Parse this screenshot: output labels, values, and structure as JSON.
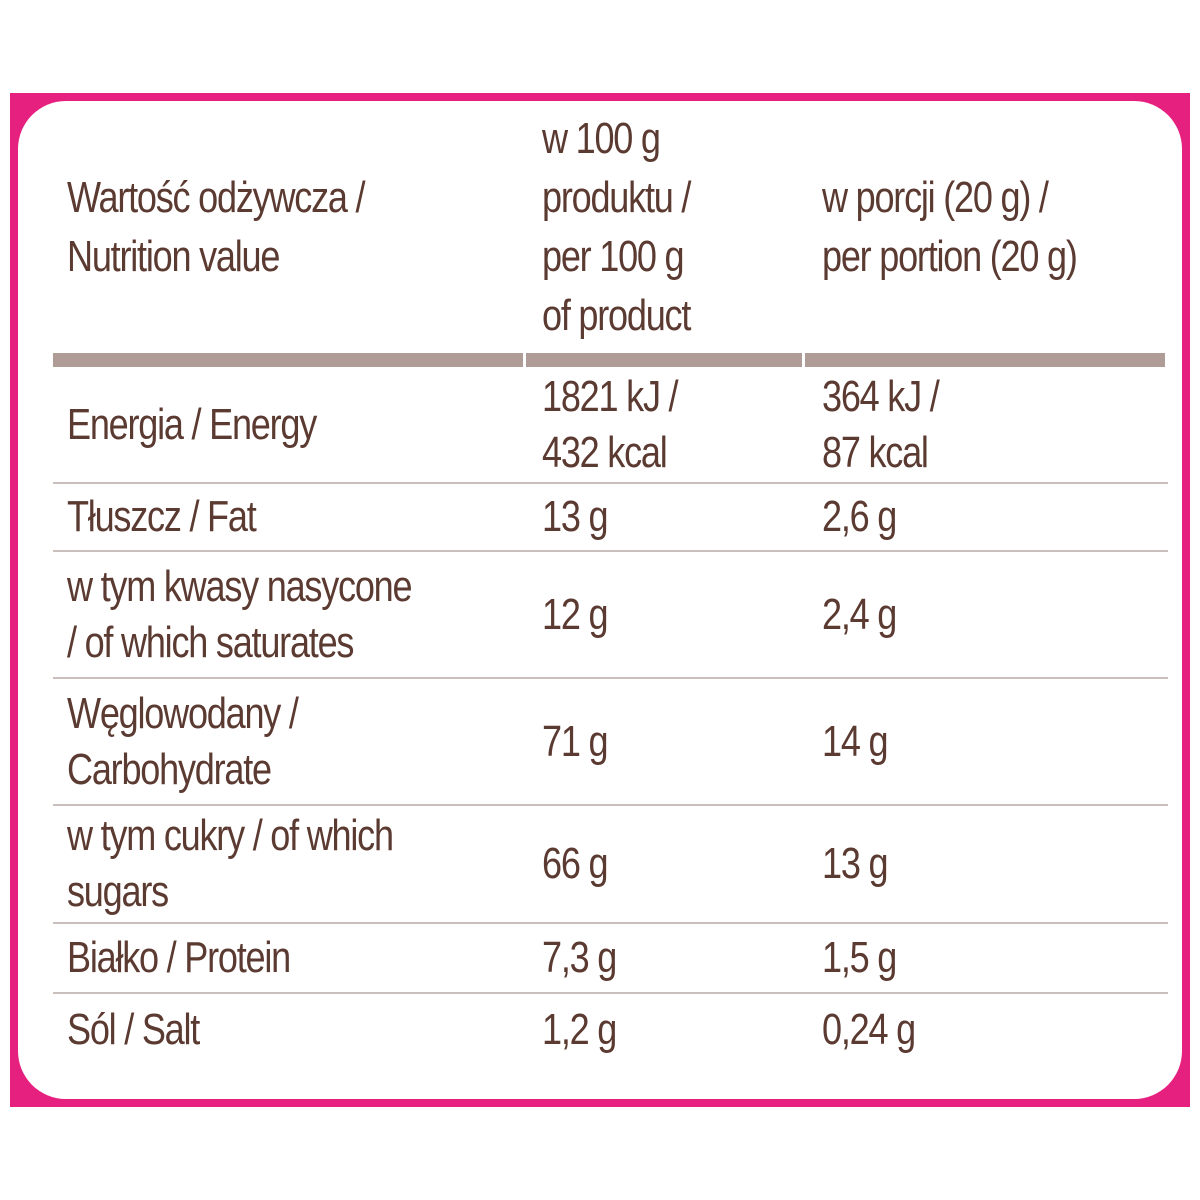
{
  "colors": {
    "frame": "#e5207f",
    "text": "#5b3a31",
    "header_rule": "#b09c97",
    "row_rule": "#cbbfbb"
  },
  "header": {
    "col1": "Wartość odżywcza /\nNutrition value",
    "col2": "w 100 g\nproduktu /\nper 100 g\nof product",
    "col3": "w porcji (20 g) /\nper portion (20 g)"
  },
  "rows": [
    {
      "label": "Energia / Energy",
      "per100": "1821 kJ /\n432 kcal",
      "perPortion": "364 kJ /\n87 kcal"
    },
    {
      "label": "Tłuszcz / Fat",
      "per100": "13 g",
      "perPortion": "2,6 g"
    },
    {
      "label": "w tym kwasy nasycone\n/ of which saturates",
      "per100": "12 g",
      "perPortion": "2,4 g"
    },
    {
      "label": "Węglowodany /\nCarbohydrate",
      "per100": "71 g",
      "perPortion": "14 g"
    },
    {
      "label": "w tym cukry / of which\nsugars",
      "per100": "66 g",
      "perPortion": "13 g"
    },
    {
      "label": "Białko / Protein",
      "per100": "7,3 g",
      "perPortion": "1,5 g"
    },
    {
      "label": "Sól / Salt",
      "per100": "1,2 g",
      "perPortion": "0,24 g"
    }
  ]
}
